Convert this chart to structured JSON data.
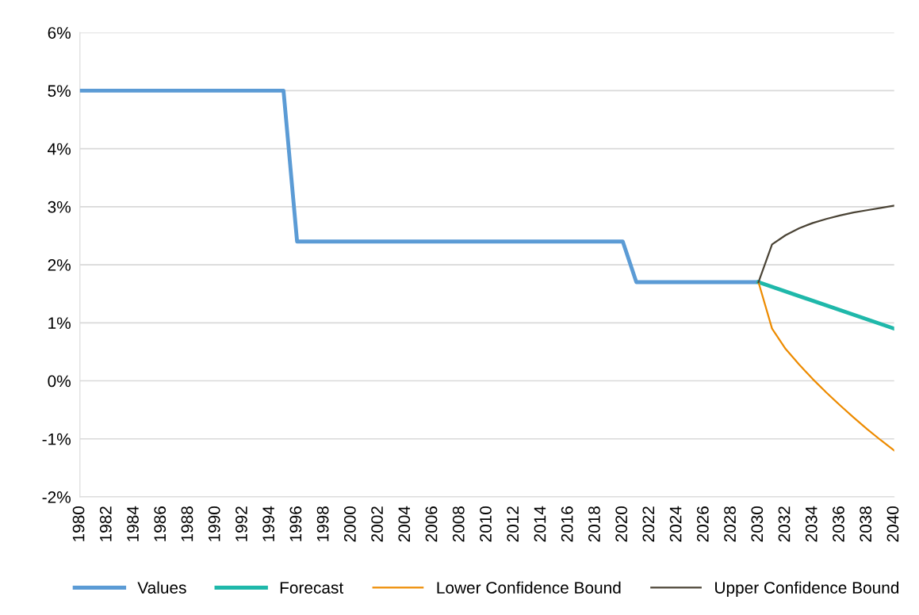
{
  "chart_data": {
    "type": "line",
    "xlim": [
      1980,
      2040
    ],
    "xticks": [
      1980,
      1982,
      1984,
      1986,
      1988,
      1990,
      1992,
      1994,
      1996,
      1998,
      2000,
      2002,
      2004,
      2006,
      2008,
      2010,
      2012,
      2014,
      2016,
      2018,
      2020,
      2022,
      2024,
      2026,
      2028,
      2030,
      2032,
      2034,
      2036,
      2038,
      2040
    ],
    "ylim": [
      -2,
      6
    ],
    "yticks": [
      {
        "value": -2,
        "label": "-2%"
      },
      {
        "value": -1,
        "label": "-1%"
      },
      {
        "value": 0,
        "label": "0%"
      },
      {
        "value": 1,
        "label": "1%"
      },
      {
        "value": 2,
        "label": "2%"
      },
      {
        "value": 3,
        "label": "3%"
      },
      {
        "value": 4,
        "label": "4%"
      },
      {
        "value": 5,
        "label": "5%"
      },
      {
        "value": 6,
        "label": "6%"
      }
    ],
    "grid": "y",
    "legend": "bottom",
    "marker": "none",
    "line_style": "solid",
    "series": [
      {
        "name": "Values",
        "color": "#5b9bd5",
        "x": [
          1980,
          1995,
          1996,
          2020,
          2021,
          2030
        ],
        "values": [
          5,
          5,
          2.4,
          2.4,
          1.7,
          1.7
        ]
      },
      {
        "name": "Forecast",
        "color": "#1fb8aa",
        "x": [
          2030,
          2040
        ],
        "values": [
          1.7,
          0.9
        ]
      },
      {
        "name": "Lower Confidence Bound",
        "color": "#ed8b00",
        "x": [
          2030,
          2031,
          2032,
          2033,
          2034,
          2035,
          2036,
          2037,
          2038,
          2039,
          2040
        ],
        "values": [
          1.7,
          0.9,
          0.55,
          0.28,
          0.03,
          -0.2,
          -0.42,
          -0.63,
          -0.83,
          -1.02,
          -1.2
        ]
      },
      {
        "name": "Upper Confidence Bound",
        "color": "#4a4335",
        "x": [
          2030,
          2031,
          2032,
          2033,
          2034,
          2035,
          2036,
          2037,
          2038,
          2039,
          2040
        ],
        "values": [
          1.7,
          2.35,
          2.51,
          2.63,
          2.72,
          2.79,
          2.85,
          2.9,
          2.94,
          2.98,
          3.02
        ]
      }
    ]
  }
}
